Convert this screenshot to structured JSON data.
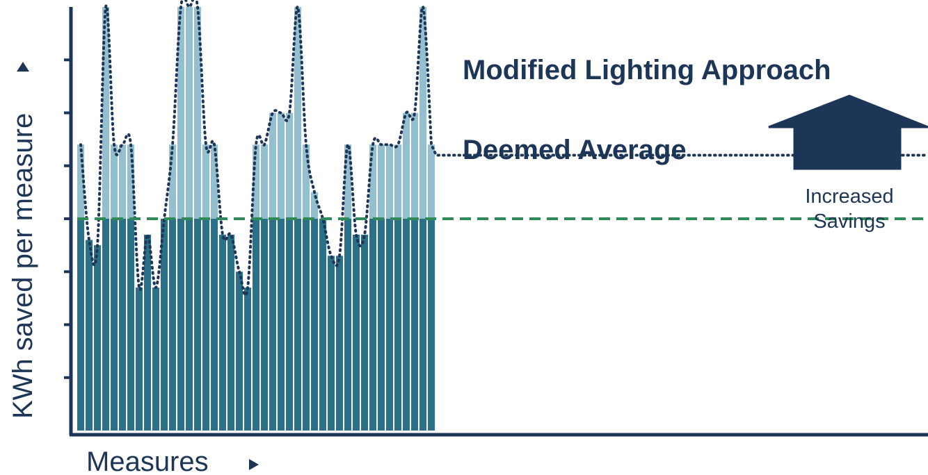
{
  "chart_data": {
    "type": "bar",
    "ylabel": "KWh saved per measure",
    "xlabel": "Measures",
    "ylim": [
      0,
      8
    ],
    "grid": false,
    "baseline": 4,
    "values": [
      5.4,
      3.6,
      3.5,
      8.0,
      5.4,
      5.4,
      5.4,
      2.7,
      3.7,
      2.7,
      4.0,
      5.4,
      8.0,
      8.0,
      8.0,
      5.4,
      5.4,
      3.7,
      3.7,
      3.0,
      2.7,
      5.4,
      5.4,
      6.0,
      6.0,
      6.0,
      8.0,
      5.4,
      4.5,
      4.0,
      3.3,
      3.3,
      5.4,
      3.7,
      3.7,
      5.4,
      5.4,
      5.4,
      5.4,
      6.0,
      6.0,
      8.0,
      5.4
    ],
    "series": [
      {
        "name": "Modified Lighting Approach",
        "color": "#1d3557",
        "style": "dotted"
      },
      {
        "name": "Deemed Average",
        "color": "#2e8b57",
        "style": "dashed"
      }
    ],
    "annotation": {
      "text_line1": "Increased",
      "text_line2": "Savings",
      "shape": "up-arrow-icon"
    },
    "colors": {
      "bar_dark": "#2b7087",
      "bar_light": "#94bfcf",
      "axis": "#1d3557",
      "arrow": "#1d3557",
      "avg_line": "#2e8b57",
      "modified_line": "#1d3557"
    }
  }
}
